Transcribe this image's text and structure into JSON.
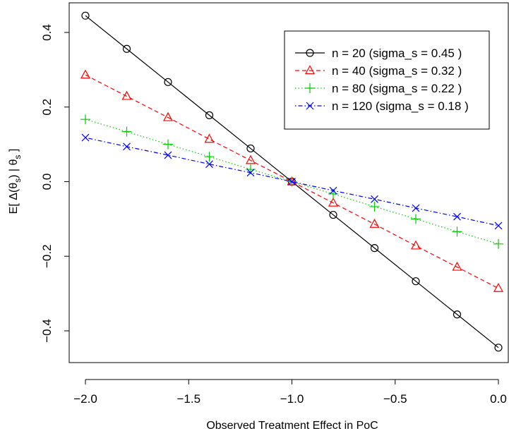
{
  "chart_data": {
    "type": "line",
    "title": "",
    "xlabel": "Observed Treatment Effect in PoC",
    "ylabel": "E[ Δ(θs) | θs ]",
    "ylabel_parts": {
      "pre": "E[ Δ(θ",
      "sub1": "s",
      "mid": ") | θ",
      "sub2": "s",
      "post": " ]"
    },
    "xlim": [
      -2.0,
      0.0
    ],
    "ylim": [
      -0.45,
      0.45
    ],
    "x_ticks": [
      -2.0,
      -1.5,
      -1.0,
      -0.5,
      0.0
    ],
    "x_tick_labels": [
      "−2.0",
      "−1.5",
      "−1.0",
      "−0.5",
      "0.0"
    ],
    "y_ticks": [
      -0.4,
      -0.2,
      0.0,
      0.2,
      0.4
    ],
    "y_tick_labels": [
      "−0.4",
      "−0.2",
      "0.0",
      "0.2",
      "0.4"
    ],
    "grid": false,
    "legend_position": "top-right",
    "x": [
      -2.0,
      -1.8,
      -1.6,
      -1.4,
      -1.2,
      -1.0,
      -0.8,
      -0.6,
      -0.4,
      -0.2,
      0.0
    ],
    "series": [
      {
        "name": "n = 20 (sigma_s = 0.45 )",
        "color": "#000000",
        "marker": "circle",
        "dash": "solid",
        "values": [
          0.445,
          0.356,
          0.267,
          0.178,
          0.089,
          0.0,
          -0.089,
          -0.178,
          -0.267,
          -0.356,
          -0.445
        ]
      },
      {
        "name": "n = 40 (sigma_s = 0.32 )",
        "color": "#ff0000",
        "marker": "triangle",
        "dash": "dashed",
        "values": [
          0.286,
          0.229,
          0.172,
          0.114,
          0.057,
          0.0,
          -0.057,
          -0.114,
          -0.172,
          -0.229,
          -0.286
        ]
      },
      {
        "name": "n = 80 (sigma_s = 0.22 )",
        "color": "#00cc00",
        "marker": "plus",
        "dash": "dotted",
        "values": [
          0.167,
          0.134,
          0.1,
          0.067,
          0.033,
          0.0,
          -0.033,
          -0.067,
          -0.1,
          -0.134,
          -0.167
        ]
      },
      {
        "name": "n = 120 (sigma_s = 0.18 )",
        "color": "#0000ff",
        "marker": "cross",
        "dash": "dotdash",
        "values": [
          0.118,
          0.094,
          0.071,
          0.047,
          0.024,
          0.0,
          -0.024,
          -0.047,
          -0.071,
          -0.094,
          -0.118
        ]
      }
    ]
  }
}
